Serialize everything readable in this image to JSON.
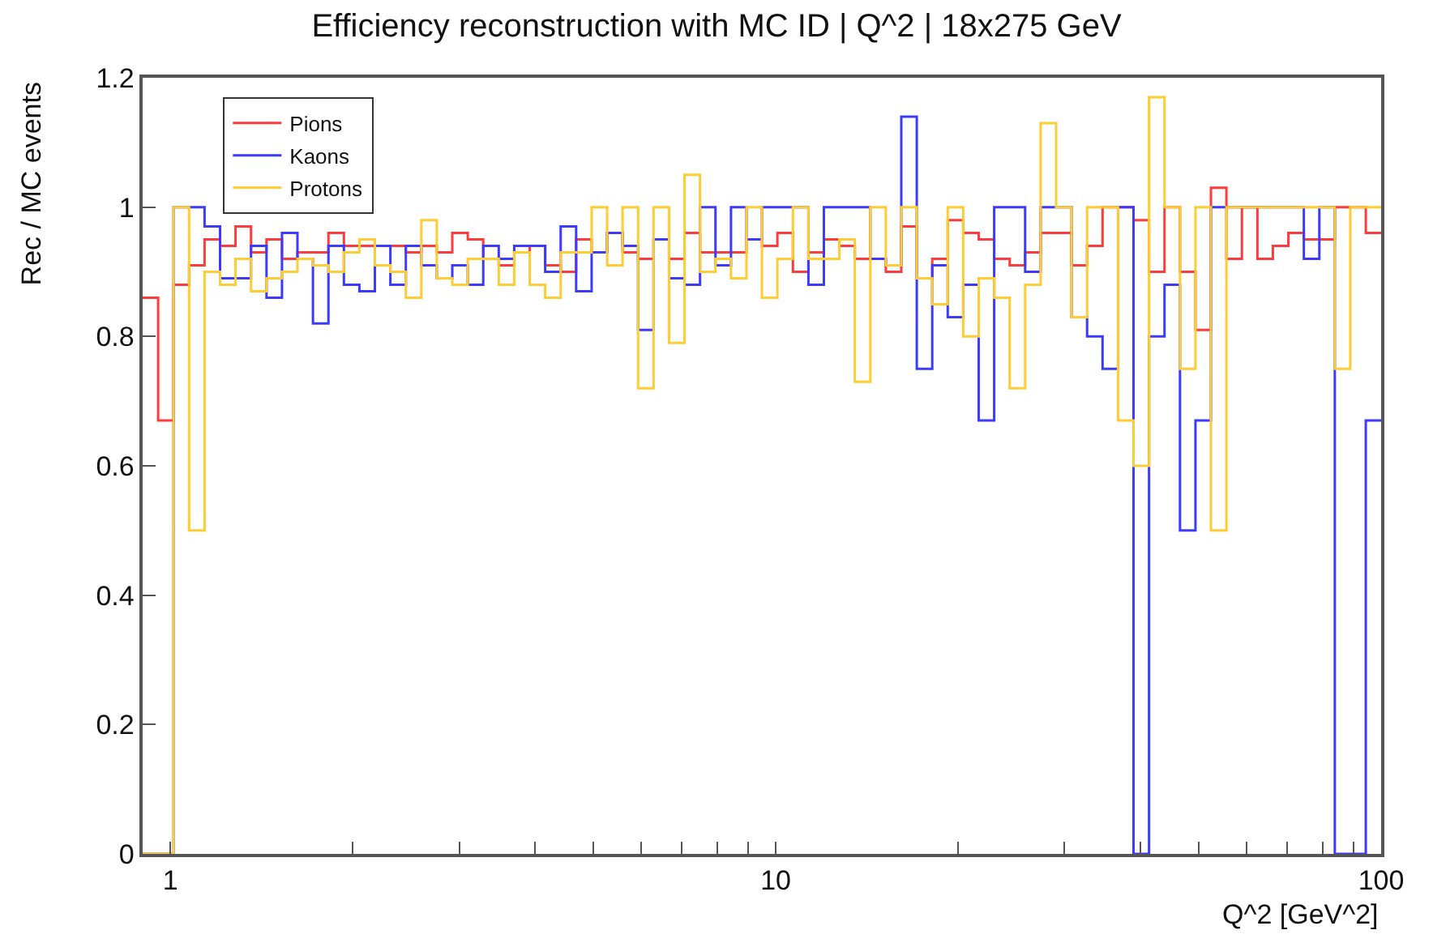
{
  "chart_data": {
    "type": "histogram",
    "title": "Efficiency reconstruction with MC ID | Q^2 | 18x275 GeV",
    "xlabel": "Q^2 [GeV^2]",
    "ylabel": "Rec / MC events",
    "bins": [
      0.9,
      0.9546,
      1.0125,
      1.0739,
      1.139,
      1.2081,
      1.2814,
      1.3591,
      1.4415,
      1.529,
      1.6217,
      1.7201,
      1.8244,
      1.9351,
      2.0524,
      2.1769,
      2.309,
      2.449,
      2.5976,
      2.7551,
      2.9223,
      3.0995,
      3.2875,
      3.4869,
      3.6984,
      3.9227,
      4.1607,
      4.4131,
      4.6807,
      4.9647,
      5.2658,
      5.5852,
      5.924,
      6.2833,
      6.6645,
      7.0687,
      7.4975,
      7.9523,
      8.4347,
      8.9463,
      9.489,
      10.064,
      10.675,
      11.323,
      12.009,
      12.738,
      13.51,
      14.33,
      15.199,
      16.121,
      17.099,
      18.136,
      19.236,
      20.403,
      21.64,
      22.953,
      24.345,
      25.822,
      27.388,
      29.049,
      30.812,
      32.681,
      34.663,
      36.766,
      38.996,
      41.362,
      43.871,
      46.532,
      49.354,
      52.348,
      55.524,
      58.892,
      62.464,
      66.253,
      70.272,
      74.535,
      79.056,
      83.851,
      88.938,
      94.333,
      100
    ],
    "series": [
      {
        "name": "Pions",
        "color": "#ff3b3b",
        "values": [
          0.86,
          0.67,
          0.88,
          0.91,
          0.95,
          0.94,
          0.97,
          0.93,
          0.95,
          0.92,
          0.93,
          0.93,
          0.96,
          0.94,
          0.94,
          0.94,
          0.94,
          0.93,
          0.94,
          0.93,
          0.96,
          0.95,
          0.92,
          0.91,
          0.93,
          0.94,
          0.91,
          0.9,
          0.95,
          0.93,
          0.96,
          0.93,
          0.92,
          0.95,
          0.92,
          0.96,
          0.93,
          0.93,
          0.93,
          0.95,
          0.94,
          0.96,
          0.9,
          0.93,
          0.95,
          0.94,
          0.92,
          0.92,
          0.9,
          0.97,
          0.89,
          0.92,
          0.98,
          0.96,
          0.95,
          0.92,
          0.91,
          0.93,
          0.96,
          0.96,
          0.91,
          0.94,
          1,
          1,
          0.98,
          0.9,
          1,
          0.9,
          0.81,
          1.03,
          0.92,
          1,
          0.92,
          0.94,
          0.96,
          0.95,
          0.95,
          1,
          1,
          0.96
        ]
      },
      {
        "name": "Kaons",
        "color": "#3b3bff",
        "values": [
          0,
          0,
          1,
          1,
          0.97,
          0.89,
          0.89,
          0.94,
          0.86,
          0.96,
          0.92,
          0.82,
          0.94,
          0.88,
          0.87,
          0.94,
          0.88,
          0.94,
          0.91,
          0.89,
          0.91,
          0.88,
          0.94,
          0.92,
          0.94,
          0.94,
          0.9,
          0.97,
          0.87,
          0.93,
          0.96,
          0.94,
          0.81,
          0.95,
          0.89,
          0.88,
          1,
          0.91,
          1,
          0.95,
          1,
          1,
          1,
          0.88,
          1,
          1,
          1,
          0.92,
          0.91,
          1.14,
          0.75,
          0.91,
          0.83,
          0.88,
          0.67,
          1,
          1,
          0.9,
          1,
          1,
          0.83,
          0.8,
          0.75,
          1,
          0,
          0.8,
          0.88,
          0.5,
          0.67,
          1,
          1,
          1,
          1,
          1,
          1,
          0.92,
          1,
          0,
          0,
          0.67
        ]
      },
      {
        "name": "Protons",
        "color": "#ffcc33",
        "values": [
          0,
          0,
          1,
          0.5,
          0.9,
          0.88,
          0.92,
          0.87,
          0.89,
          0.9,
          0.92,
          0.91,
          0.9,
          0.93,
          0.95,
          0.91,
          0.9,
          0.86,
          0.98,
          0.89,
          0.88,
          0.92,
          0.92,
          0.88,
          0.93,
          0.88,
          0.86,
          0.93,
          0.93,
          1,
          0.91,
          1,
          0.72,
          1,
          0.79,
          1.05,
          0.9,
          0.92,
          0.89,
          1,
          0.86,
          0.92,
          1,
          0.92,
          0.92,
          0.95,
          0.73,
          1,
          0.91,
          1,
          0.89,
          0.85,
          1,
          0.8,
          0.89,
          0.86,
          0.72,
          0.88,
          1.13,
          1,
          0.83,
          1,
          1,
          0.67,
          0.6,
          1.17,
          1,
          0.75,
          1,
          0.5,
          1,
          1,
          1,
          1,
          1,
          1,
          1,
          0.75,
          1,
          1
        ]
      }
    ],
    "log": "x",
    "xlim": [
      0.9,
      100
    ],
    "xticks": [
      1,
      {
        "value": 2,
        "label": null
      },
      {
        "value": 3,
        "label": null
      },
      {
        "value": 4,
        "label": null
      },
      {
        "value": 5,
        "label": null
      },
      {
        "value": 6,
        "label": null
      },
      {
        "value": 7,
        "label": null
      },
      {
        "value": 8,
        "label": null
      },
      {
        "value": 9,
        "label": null
      },
      10,
      {
        "value": 20,
        "label": null
      },
      {
        "value": 30,
        "label": null
      },
      {
        "value": 40,
        "label": null
      },
      {
        "value": 50,
        "label": null
      },
      {
        "value": 60,
        "label": null
      },
      {
        "value": 70,
        "label": null
      },
      {
        "value": 80,
        "label": null
      },
      {
        "value": 90,
        "label": null
      },
      100
    ],
    "ylim": [
      0,
      1.2
    ],
    "yticks": [
      0,
      0.2,
      0.4,
      0.6,
      0.8,
      1,
      1.2
    ],
    "legend": "top left"
  }
}
